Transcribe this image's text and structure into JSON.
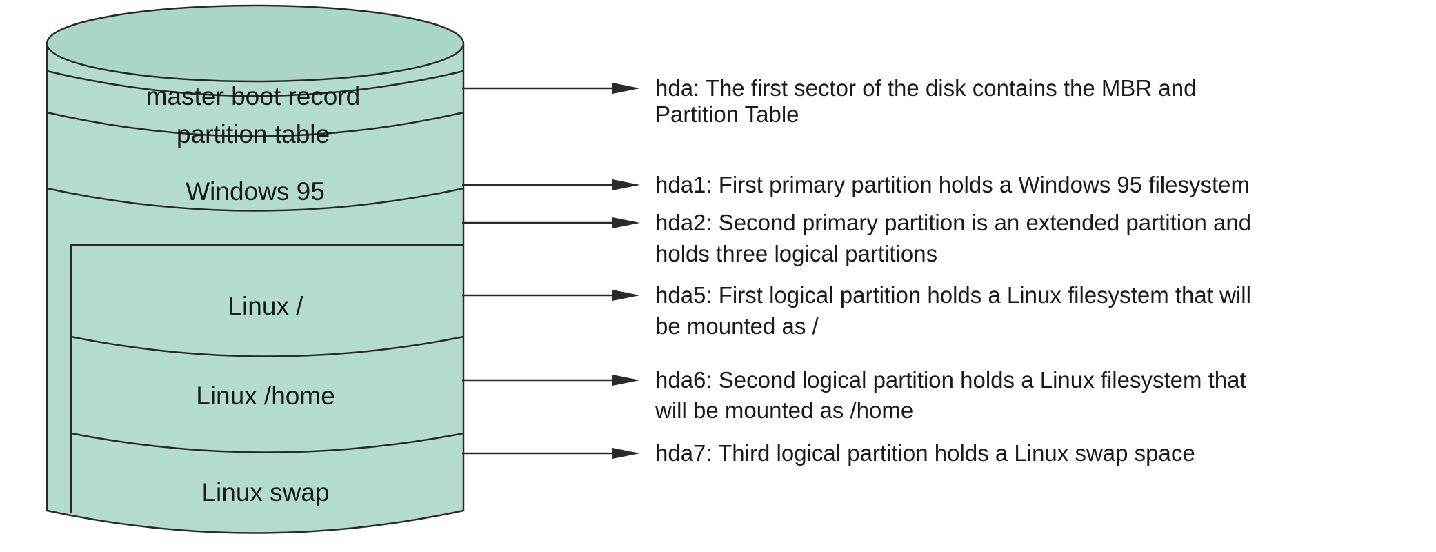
{
  "colors": {
    "disk_fill": "#b3dccf",
    "disk_top": "#a9d6c8",
    "outline": "#2a2a2a",
    "text": "#1a1a1a"
  },
  "disk_labels": {
    "mbr": "master boot record",
    "partition_table": "partition table",
    "windows": "Windows 95",
    "linux_root": "Linux /",
    "linux_home": "Linux /home",
    "linux_swap": "Linux swap"
  },
  "callouts": {
    "hda": [
      "hda: The first sector of the disk contains the MBR and",
      "Partition Table"
    ],
    "hda1": [
      "hda1: First primary partition holds a Windows 95 filesystem"
    ],
    "hda2": [
      "hda2: Second primary partition is an extended partition and",
      "holds three logical partitions"
    ],
    "hda5": [
      "hda5: First logical partition holds a Linux filesystem that will",
      "be mounted as /"
    ],
    "hda6": [
      "hda6: Second logical partition holds a Linux filesystem that",
      "will be mounted as /home"
    ],
    "hda7": [
      "hda7: Third logical partition holds a Linux swap space"
    ]
  }
}
